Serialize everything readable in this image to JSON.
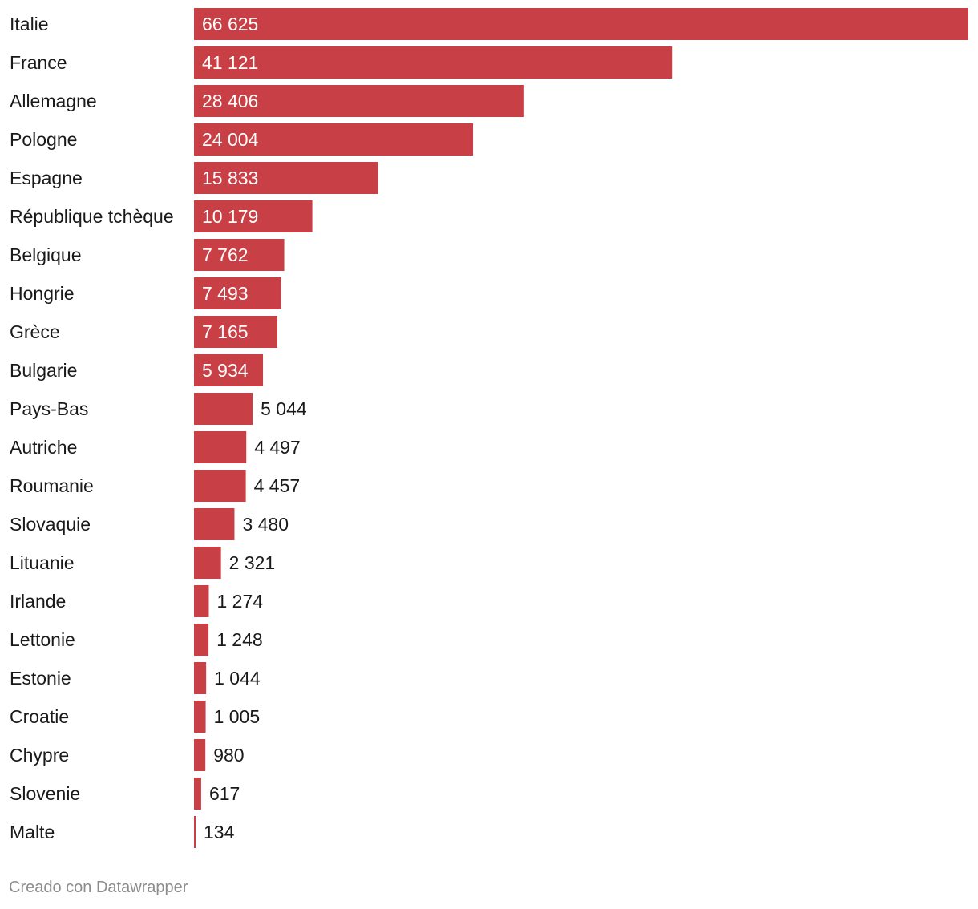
{
  "chart_data": {
    "type": "bar",
    "orientation": "horizontal",
    "categories": [
      "Italie",
      "France",
      "Allemagne",
      "Pologne",
      "Espagne",
      "République tchèque",
      "Belgique",
      "Hongrie",
      "Grèce",
      "Bulgarie",
      "Pays-Bas",
      "Autriche",
      "Roumanie",
      "Slovaquie",
      "Lituanie",
      "Irlande",
      "Lettonie",
      "Estonie",
      "Croatie",
      "Chypre",
      "Slovenie",
      "Malte"
    ],
    "values": [
      66625,
      41121,
      28406,
      24004,
      15833,
      10179,
      7762,
      7493,
      7165,
      5934,
      5044,
      4497,
      4457,
      3480,
      2321,
      1274,
      1248,
      1044,
      1005,
      980,
      617,
      134
    ],
    "value_labels": [
      "66 625",
      "41 121",
      "28 406",
      "24 004",
      "15 833",
      "10 179",
      "7 762",
      "7 493",
      "7 165",
      "5 934",
      "5 044",
      "4 497",
      "4 457",
      "3 480",
      "2 321",
      "1 274",
      "1 248",
      "1 044",
      "1 005",
      "980",
      "617",
      "134"
    ],
    "xlim": [
      0,
      66625
    ],
    "grid": false,
    "legend": "none",
    "bar_color": "#c84045"
  },
  "footer": {
    "credit": "Creado con Datawrapper"
  }
}
